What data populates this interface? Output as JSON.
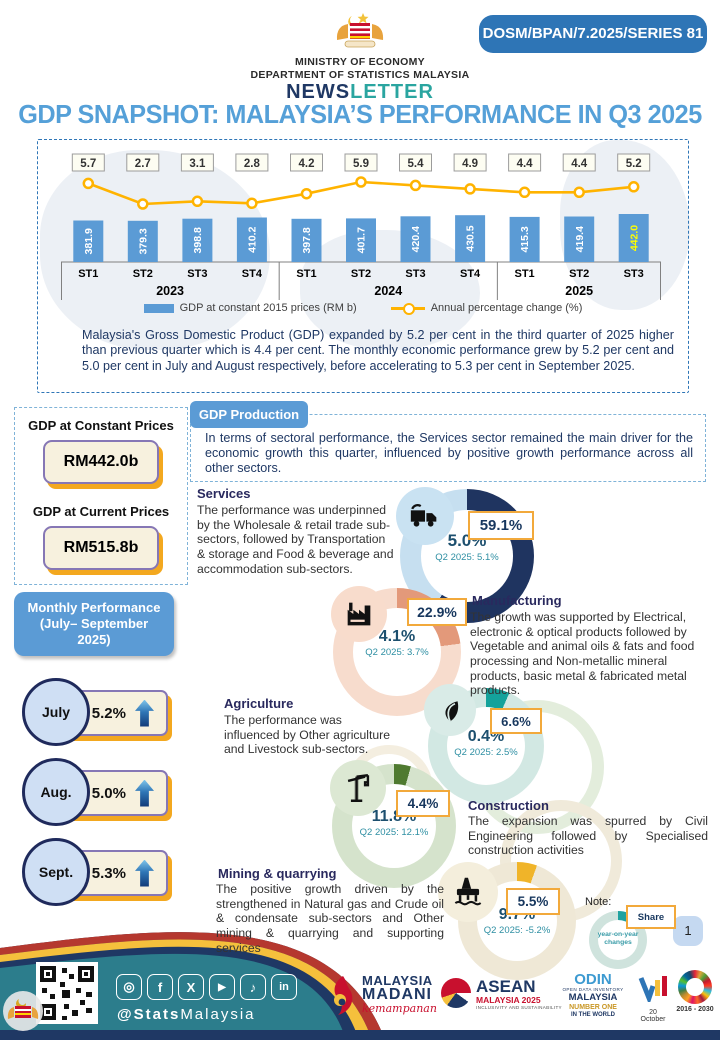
{
  "header": {
    "ministry": "MINISTRY OF ECONOMY",
    "department": "DEPARTMENT OF STATISTICS MALAYSIA",
    "newsletter_prefix": "NEWS",
    "newsletter_suffix": "LETTER",
    "series_badge": "DOSM/BPAN/7.2025/SERIES 81"
  },
  "title": "GDP SNAPSHOT: MALAYSIA’S PERFORMANCE IN Q3 2025",
  "chart_data": {
    "type": "bar+line",
    "categories": [
      "ST1",
      "ST2",
      "ST3",
      "ST4",
      "ST1",
      "ST2",
      "ST3",
      "ST4",
      "ST1",
      "ST2",
      "ST3"
    ],
    "year_groups": [
      {
        "label": "2023",
        "span": 4
      },
      {
        "label": "2024",
        "span": 4
      },
      {
        "label": "2025",
        "span": 3
      }
    ],
    "series": [
      {
        "name": "GDP at constant 2015 prices (RM b)",
        "type": "bar",
        "values": [
          381.9,
          379.3,
          398.8,
          410.2,
          397.8,
          401.7,
          420.4,
          430.5,
          415.3,
          419.4,
          442.0
        ]
      },
      {
        "name": "Annual percentage change (%)",
        "type": "line",
        "values": [
          5.7,
          2.7,
          3.1,
          2.8,
          4.2,
          5.9,
          5.4,
          4.9,
          4.4,
          4.4,
          5.2
        ]
      }
    ],
    "bar_color": "#5B9BD5",
    "line_color": "#FFB300",
    "last_bar_label_color": "#FFFF00",
    "legend_position": "bottom",
    "grid": false
  },
  "summary": "Malaysia's Gross Domestic Product (GDP) expanded by 5.2 per cent in the third quarter of 2025 higher than previous quarter which is 4.4 per cent. The monthly economic performance grew by 5.2 per cent and 5.0 per cent in July and August respectively, before accelerating to 5.3 per cent in September 2025.",
  "gdp_boxes": {
    "constant_label": "GDP at Constant Prices",
    "constant_value": "RM442.0b",
    "current_label": "GDP at Current Prices",
    "current_value": "RM515.8b"
  },
  "gdp_production": {
    "tab": "GDP Production",
    "text": "In terms of sectoral performance, the Services sector remained the main driver for the economic growth this quarter, influenced by positive growth performance across all other sectors."
  },
  "monthly": {
    "header_line1": "Monthly Performance",
    "header_line2": "(July– September",
    "header_line3": "2025)",
    "months": [
      {
        "label": "July",
        "value": "5.2%"
      },
      {
        "label": "Aug.",
        "value": "5.0%"
      },
      {
        "label": "Sept.",
        "value": "5.3%"
      }
    ]
  },
  "sectors": [
    {
      "name": "Services",
      "icon": "delivery-truck",
      "share": "59.1%",
      "share_pct": 59.1,
      "growth": "5.0%",
      "prev": "Q2 2025: 5.1%",
      "seg_color": "#1F3460",
      "ring_color": "#C6DFF0",
      "desc": "The performance was underpinned by the Wholesale & retail trade sub-sectors, followed by Transportation & storage and Food & beverage and accommodation sub-sectors."
    },
    {
      "name": "Manufacturing",
      "icon": "factory",
      "share": "22.9%",
      "share_pct": 22.9,
      "growth": "4.1%",
      "prev": "Q2 2025: 3.7%",
      "seg_color": "#E3997A",
      "ring_color": "#F7DCCD",
      "desc": "The growth was supported by Electrical, electronic & optical products followed by Vegetable and animal oils & fats and food processing and Non-metallic mineral products, basic metal & fabricated metal products."
    },
    {
      "name": "Agriculture",
      "icon": "plant",
      "share": "6.6%",
      "share_pct": 6.6,
      "growth": "0.4%",
      "prev": "Q2 2025: 2.5%",
      "seg_color": "#14A29B",
      "ring_color": "#D2E8E3",
      "desc": "The performance was influenced by Other agriculture  and Livestock sub-sectors."
    },
    {
      "name": "Construction",
      "icon": "crane",
      "share": "4.4%",
      "share_pct": 4.4,
      "growth": "11.8%",
      "prev": "Q2 2025: 12.1%",
      "seg_color": "#4F7A30",
      "ring_color": "#D5E3CC",
      "desc": "The expansion was spurred by Civil Engineering followed by Specialised construction activities"
    },
    {
      "name": "Mining & quarrying",
      "icon": "oil-rig",
      "share": "5.5%",
      "share_pct": 5.5,
      "growth": "9.7%",
      "prev": "Q2 2025: -5.2%",
      "seg_color": "#F0B429",
      "ring_color": "#EFE8D6",
      "desc": "The positive growth driven by the strengthened in Natural gas and Crude oil & condensate sub-sectors and Other mining & quarrying and supporting services"
    }
  ],
  "note": {
    "label": "Note:",
    "share_label": "Share",
    "yoy_line1": "year-on-year",
    "yoy_line2": "changes",
    "seg_color": "#1FA2A0",
    "ring_color": "#CFE3DD",
    "seg_pct": 8,
    "page": "1"
  },
  "footer": {
    "handle_bold": "@Stats",
    "handle_rest": "Malaysia",
    "social_icons": [
      "instagram",
      "facebook",
      "x",
      "youtube",
      "tiktok",
      "linkedin"
    ],
    "madani_1": "MALAYSIA",
    "madani_2": "MADANI",
    "madani_3": "kemampanan",
    "asean_1": "ASEAN",
    "asean_2": "MALAYSIA 2025",
    "asean_3": "INCLUSIVITY AND SUSTAINABILITY",
    "odin_1": "ODIN",
    "odin_2": "OPEN DATA INVENTORY",
    "odin_3": "MALAYSIA",
    "odin_4": "NUMBER ONE",
    "odin_5": "IN THE WORLD",
    "stats_day": "20 October",
    "sdg_years": "2016 - 2030"
  }
}
